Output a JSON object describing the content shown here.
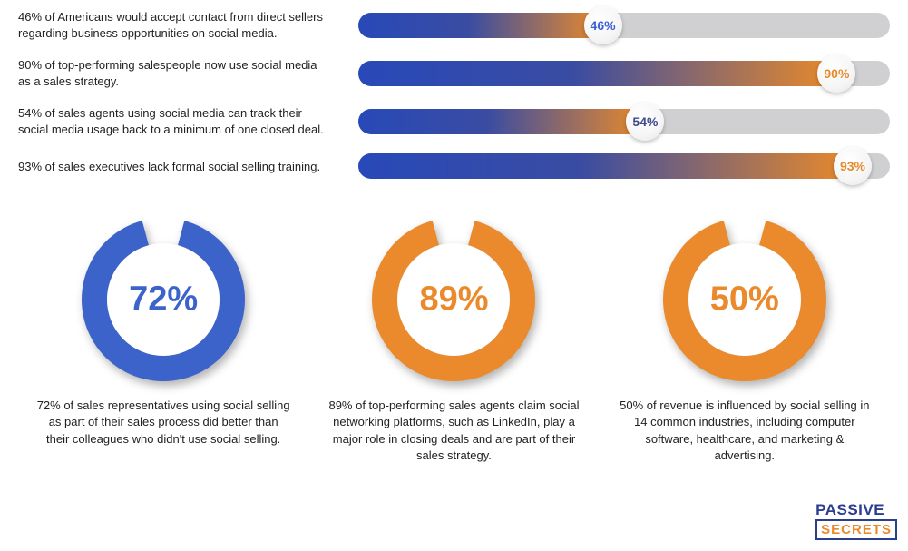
{
  "bars": {
    "track_color": "#d0d0d3",
    "track_radius": 14,
    "gradient_start": "#2849b8",
    "gradient_mid": "#3a4ca2",
    "gradient_end": "#e98a2a",
    "items": [
      {
        "label": "46% of Americans would accept contact from direct sellers regarding business opportunities on social media.",
        "value": 46,
        "badge_text": "46%",
        "badge_color": "#3c5fd4"
      },
      {
        "label": "90% of top-performing salespeople now use social media as a sales strategy.",
        "value": 90,
        "badge_text": "90%",
        "badge_color": "#e78a2a"
      },
      {
        "label": "54% of sales agents using social media can track their social media usage back to a minimum of one closed deal.",
        "value": 54,
        "badge_text": "54%",
        "badge_color": "#3f4a8b"
      },
      {
        "label": "93% of sales executives lack formal social selling training.",
        "value": 93,
        "badge_text": "93%",
        "badge_color": "#e78a2a"
      }
    ]
  },
  "donuts": {
    "size": 180,
    "thickness": 28,
    "gap_angle_deg": 30,
    "inner_fill": "#ffffff",
    "value_fontsize": 38,
    "items": [
      {
        "value": 72,
        "text": "72%",
        "color": "#3c63c9",
        "caption": "72% of sales representatives using social selling as part of their sales process did better than their colleagues who didn't use social selling."
      },
      {
        "value": 89,
        "text": "89%",
        "color": "#ea8a2d",
        "caption": "89% of top-performing sales agents claim social networking platforms, such as LinkedIn, play a major role in closing deals and are part of their sales strategy."
      },
      {
        "value": 50,
        "text": "50%",
        "color": "#ea8a2d",
        "caption": "50% of revenue is influenced by social selling in 14 common industries, including computer software, healthcare, and marketing & advertising."
      }
    ]
  },
  "logo": {
    "line1": "PASSIVE",
    "line1_color": "#2b3d8f",
    "line2": "SECRETS",
    "line2_color": "#ea8a2d",
    "line2_border": "#2b3d8f"
  }
}
